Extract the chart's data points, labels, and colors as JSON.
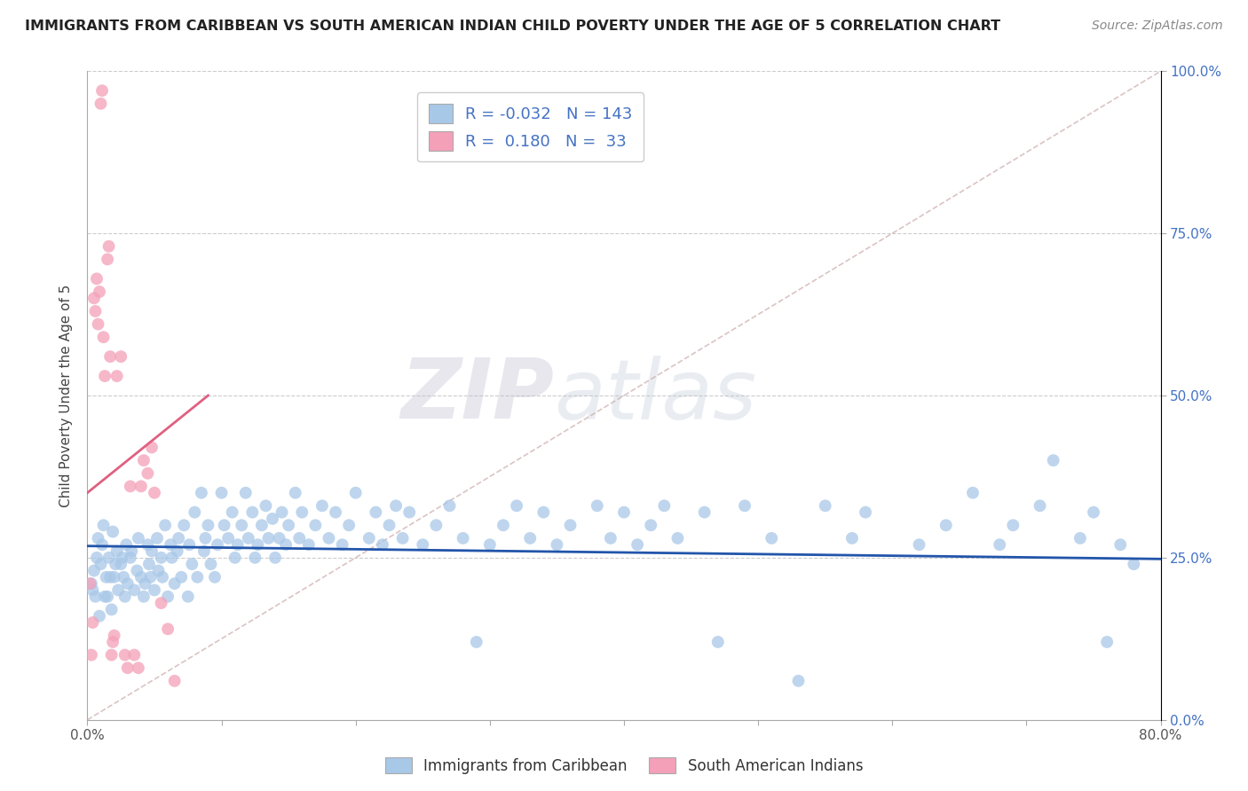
{
  "title": "IMMIGRANTS FROM CARIBBEAN VS SOUTH AMERICAN INDIAN CHILD POVERTY UNDER THE AGE OF 5 CORRELATION CHART",
  "source": "Source: ZipAtlas.com",
  "ylabel": "Child Poverty Under the Age of 5",
  "xlim": [
    0.0,
    0.8
  ],
  "ylim": [
    0.0,
    1.0
  ],
  "xtick_labels": [
    "0.0%",
    "",
    "",
    "",
    "",
    "",
    "",
    "",
    "80.0%"
  ],
  "xtick_vals": [
    0.0,
    0.1,
    0.2,
    0.3,
    0.4,
    0.5,
    0.6,
    0.7,
    0.8
  ],
  "ytick_right_labels": [
    "100.0%",
    "75.0%",
    "50.0%",
    "25.0%",
    "0.0%"
  ],
  "ytick_right_vals": [
    1.0,
    0.75,
    0.5,
    0.25,
    0.0
  ],
  "grid_ytick_vals": [
    0.0,
    0.25,
    0.5,
    0.75,
    1.0
  ],
  "watermark_zip": "ZIP",
  "watermark_atlas": "atlas",
  "blue_R": -0.032,
  "blue_N": 143,
  "pink_R": 0.18,
  "pink_N": 33,
  "blue_color": "#A8C8E8",
  "pink_color": "#F4A0B8",
  "blue_line_color": "#2255AA",
  "pink_line_color": "#E06080",
  "blue_line_x": [
    0.0,
    0.8
  ],
  "blue_line_y": [
    0.268,
    0.248
  ],
  "pink_line_x": [
    0.0,
    0.09
  ],
  "pink_line_y": [
    0.35,
    0.5
  ],
  "diag_line_x": [
    0.0,
    0.8
  ],
  "diag_line_y": [
    0.0,
    1.0
  ],
  "blue_scatter_x": [
    0.003,
    0.004,
    0.005,
    0.006,
    0.007,
    0.008,
    0.009,
    0.01,
    0.011,
    0.012,
    0.013,
    0.014,
    0.015,
    0.016,
    0.017,
    0.018,
    0.019,
    0.02,
    0.021,
    0.022,
    0.023,
    0.025,
    0.026,
    0.027,
    0.028,
    0.029,
    0.03,
    0.032,
    0.033,
    0.035,
    0.037,
    0.038,
    0.04,
    0.042,
    0.043,
    0.045,
    0.046,
    0.047,
    0.048,
    0.05,
    0.052,
    0.053,
    0.055,
    0.056,
    0.058,
    0.06,
    0.062,
    0.063,
    0.065,
    0.067,
    0.068,
    0.07,
    0.072,
    0.075,
    0.076,
    0.078,
    0.08,
    0.082,
    0.085,
    0.087,
    0.088,
    0.09,
    0.092,
    0.095,
    0.097,
    0.1,
    0.102,
    0.105,
    0.108,
    0.11,
    0.112,
    0.115,
    0.118,
    0.12,
    0.123,
    0.125,
    0.127,
    0.13,
    0.133,
    0.135,
    0.138,
    0.14,
    0.143,
    0.145,
    0.148,
    0.15,
    0.155,
    0.158,
    0.16,
    0.165,
    0.17,
    0.175,
    0.18,
    0.185,
    0.19,
    0.195,
    0.2,
    0.21,
    0.215,
    0.22,
    0.225,
    0.23,
    0.235,
    0.24,
    0.25,
    0.26,
    0.27,
    0.28,
    0.29,
    0.3,
    0.31,
    0.32,
    0.33,
    0.34,
    0.35,
    0.36,
    0.38,
    0.39,
    0.4,
    0.41,
    0.42,
    0.43,
    0.44,
    0.46,
    0.47,
    0.49,
    0.51,
    0.53,
    0.55,
    0.57,
    0.58,
    0.62,
    0.64,
    0.66,
    0.68,
    0.69,
    0.71,
    0.72,
    0.74,
    0.75,
    0.76,
    0.77,
    0.78
  ],
  "blue_scatter_y": [
    0.21,
    0.2,
    0.23,
    0.19,
    0.25,
    0.28,
    0.16,
    0.24,
    0.27,
    0.3,
    0.19,
    0.22,
    0.19,
    0.25,
    0.22,
    0.17,
    0.29,
    0.22,
    0.24,
    0.26,
    0.2,
    0.24,
    0.25,
    0.22,
    0.19,
    0.27,
    0.21,
    0.25,
    0.26,
    0.2,
    0.23,
    0.28,
    0.22,
    0.19,
    0.21,
    0.27,
    0.24,
    0.22,
    0.26,
    0.2,
    0.28,
    0.23,
    0.25,
    0.22,
    0.3,
    0.19,
    0.27,
    0.25,
    0.21,
    0.26,
    0.28,
    0.22,
    0.3,
    0.19,
    0.27,
    0.24,
    0.32,
    0.22,
    0.35,
    0.26,
    0.28,
    0.3,
    0.24,
    0.22,
    0.27,
    0.35,
    0.3,
    0.28,
    0.32,
    0.25,
    0.27,
    0.3,
    0.35,
    0.28,
    0.32,
    0.25,
    0.27,
    0.3,
    0.33,
    0.28,
    0.31,
    0.25,
    0.28,
    0.32,
    0.27,
    0.3,
    0.35,
    0.28,
    0.32,
    0.27,
    0.3,
    0.33,
    0.28,
    0.32,
    0.27,
    0.3,
    0.35,
    0.28,
    0.32,
    0.27,
    0.3,
    0.33,
    0.28,
    0.32,
    0.27,
    0.3,
    0.33,
    0.28,
    0.12,
    0.27,
    0.3,
    0.33,
    0.28,
    0.32,
    0.27,
    0.3,
    0.33,
    0.28,
    0.32,
    0.27,
    0.3,
    0.33,
    0.28,
    0.32,
    0.12,
    0.33,
    0.28,
    0.06,
    0.33,
    0.28,
    0.32,
    0.27,
    0.3,
    0.35,
    0.27,
    0.3,
    0.33,
    0.4,
    0.28,
    0.32,
    0.12,
    0.27,
    0.24
  ],
  "pink_scatter_x": [
    0.002,
    0.003,
    0.004,
    0.005,
    0.006,
    0.007,
    0.008,
    0.009,
    0.01,
    0.011,
    0.012,
    0.013,
    0.015,
    0.016,
    0.017,
    0.018,
    0.019,
    0.02,
    0.022,
    0.025,
    0.028,
    0.03,
    0.032,
    0.035,
    0.038,
    0.04,
    0.042,
    0.045,
    0.048,
    0.05,
    0.055,
    0.06,
    0.065
  ],
  "pink_scatter_y": [
    0.21,
    0.1,
    0.15,
    0.65,
    0.63,
    0.68,
    0.61,
    0.66,
    0.95,
    0.97,
    0.59,
    0.53,
    0.71,
    0.73,
    0.56,
    0.1,
    0.12,
    0.13,
    0.53,
    0.56,
    0.1,
    0.08,
    0.36,
    0.1,
    0.08,
    0.36,
    0.4,
    0.38,
    0.42,
    0.35,
    0.18,
    0.14,
    0.06
  ]
}
